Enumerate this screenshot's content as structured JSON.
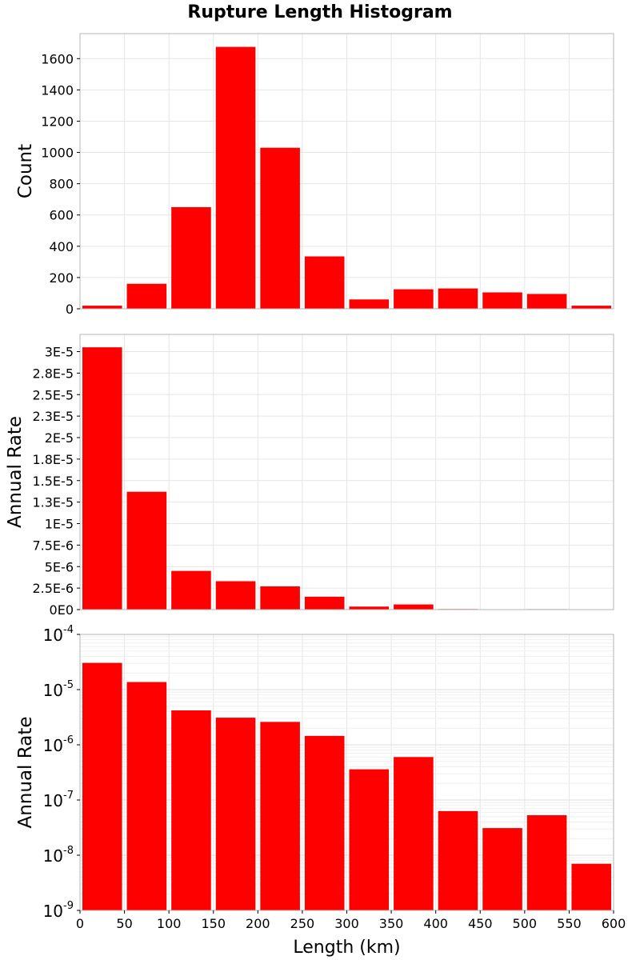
{
  "chart_data": {
    "type": "bar",
    "title": "Rupture Length Histogram",
    "xlabel": "Length (km)",
    "xlim": [
      0,
      600
    ],
    "xticks": [
      "0",
      "50",
      "100",
      "150",
      "200",
      "250",
      "300",
      "350",
      "400",
      "450",
      "500",
      "550",
      "600"
    ],
    "bin_width": 50,
    "bin_centers": [
      25,
      75,
      125,
      175,
      225,
      275,
      325,
      375,
      425,
      475,
      525,
      575
    ],
    "bar_color": "#ff0000",
    "grid": true,
    "panels": [
      {
        "ylabel": "Count",
        "scale": "linear",
        "ylim": [
          0,
          1760
        ],
        "ytick_values": [
          0,
          200,
          400,
          600,
          800,
          1000,
          1200,
          1400,
          1600
        ],
        "ytick_labels": [
          "0",
          "200",
          "400",
          "600",
          "800",
          "1000",
          "1200",
          "1400",
          "1600"
        ],
        "values": [
          20,
          160,
          650,
          1675,
          1030,
          335,
          60,
          125,
          130,
          105,
          95,
          20
        ]
      },
      {
        "ylabel": "Annual Rate",
        "scale": "linear",
        "ylim": [
          0,
          3.2e-05
        ],
        "ytick_values": [
          0,
          2.5e-06,
          5e-06,
          7.5e-06,
          1e-05,
          1.25e-05,
          1.5e-05,
          1.75e-05,
          2e-05,
          2.25e-05,
          2.5e-05,
          2.75e-05,
          3e-05
        ],
        "ytick_labels": [
          "0E0",
          "2.5E-6",
          "5E-6",
          "7.5E-6",
          "1E-5",
          "1.3E-5",
          "1.5E-5",
          "1.8E-5",
          "2E-5",
          "2.3E-5",
          "2.5E-5",
          "2.8E-5",
          "3E-5"
        ],
        "values": [
          3.05e-05,
          1.37e-05,
          4.5e-06,
          3.3e-06,
          2.7e-06,
          1.5e-06,
          3.5e-07,
          6e-07,
          6.5e-08,
          3e-08,
          5.5e-08,
          7e-09
        ]
      },
      {
        "ylabel": "Annual Rate",
        "scale": "log",
        "ylim": [
          1e-09,
          0.0001
        ],
        "ytick_exponents": [
          -9,
          -8,
          -7,
          -6,
          -5,
          -4
        ],
        "ytick_base": "10",
        "values": [
          3.05e-05,
          1.37e-05,
          4.2e-06,
          3.1e-06,
          2.6e-06,
          1.45e-06,
          3.6e-07,
          6e-07,
          6.3e-08,
          3.1e-08,
          5.3e-08,
          7e-09
        ]
      }
    ]
  }
}
